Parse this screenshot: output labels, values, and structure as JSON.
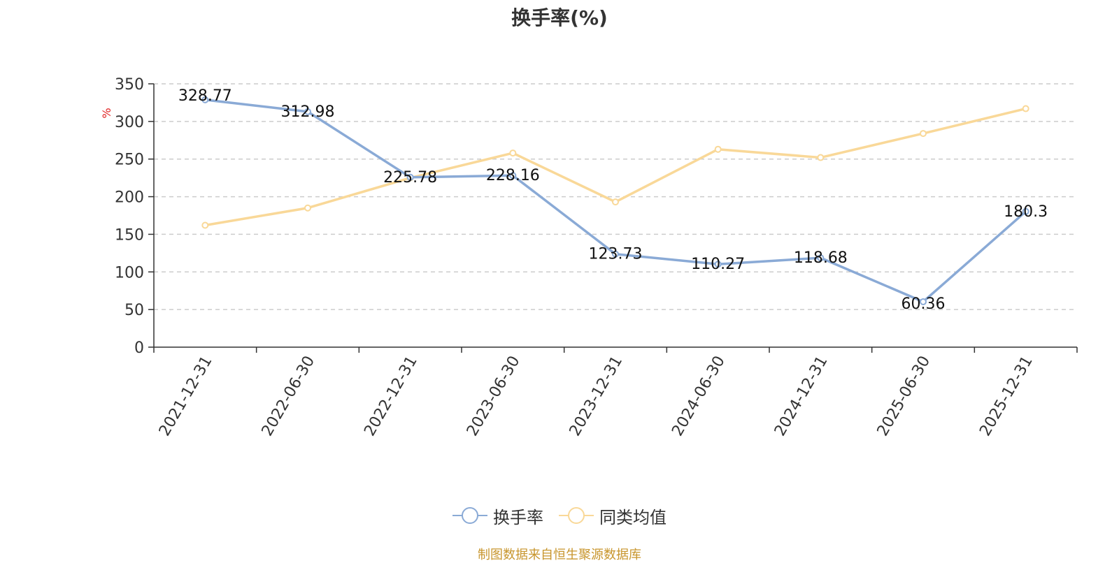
{
  "chart_data": {
    "type": "line",
    "title": "换手率(%)",
    "ylabel": "%",
    "categories": [
      "2021-12-31",
      "2022-06-30",
      "2022-12-31",
      "2023-06-30",
      "2023-12-31",
      "2024-06-30",
      "2024-12-31",
      "2025-06-30",
      "2025-12-31"
    ],
    "ylim": [
      0,
      350
    ],
    "yticks": [
      0,
      50,
      100,
      150,
      200,
      250,
      300,
      350
    ],
    "grid": true,
    "legend_position": "bottom",
    "series": [
      {
        "name": "换手率",
        "color": "#8aaad6",
        "values": [
          328.77,
          312.98,
          225.78,
          228.16,
          123.73,
          110.27,
          118.68,
          60.36,
          180.3
        ],
        "labels": [
          "328.77",
          "312.98",
          "225.78",
          "228.16",
          "123.73",
          "110.27",
          "118.68",
          "60.36",
          "180.3"
        ]
      },
      {
        "name": "同类均值",
        "color": "#f9d898",
        "values": [
          162,
          185,
          225,
          258,
          193,
          263,
          252,
          284,
          317
        ]
      }
    ],
    "source_note": "制图数据来自恒生聚源数据库"
  }
}
